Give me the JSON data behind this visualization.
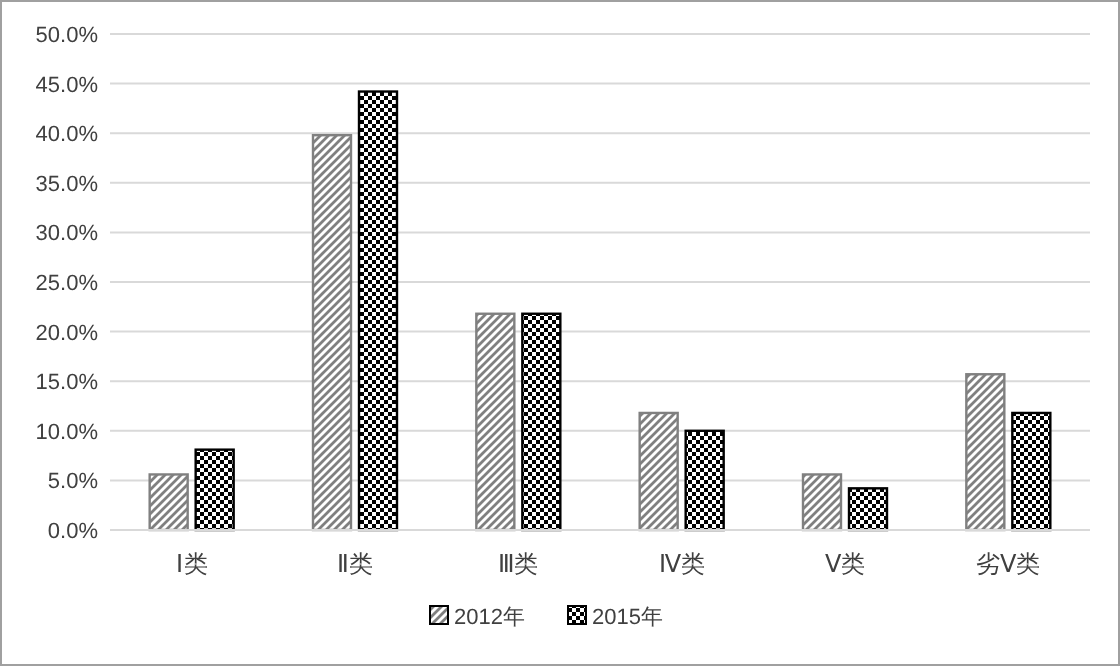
{
  "chart_data": {
    "type": "bar",
    "categories": [
      "Ⅰ类",
      "Ⅱ类",
      "Ⅲ类",
      "Ⅳ类",
      "Ⅴ类",
      "劣Ⅴ类"
    ],
    "series": [
      {
        "name": "2012年",
        "color": "#808080",
        "values": [
          5.6,
          39.8,
          21.8,
          11.8,
          5.6,
          15.7
        ]
      },
      {
        "name": "2015年",
        "color": "#000000",
        "values": [
          8.1,
          44.2,
          21.8,
          10.0,
          4.2,
          11.8
        ]
      }
    ],
    "ylim": [
      0,
      50
    ],
    "yticks": [
      {
        "value": 0,
        "label": "0.0%"
      },
      {
        "value": 5,
        "label": "5.0%"
      },
      {
        "value": 10,
        "label": "10.0%"
      },
      {
        "value": 15,
        "label": "15.0%"
      },
      {
        "value": 20,
        "label": "20.0%"
      },
      {
        "value": 25,
        "label": "25.0%"
      },
      {
        "value": 30,
        "label": "30.0%"
      },
      {
        "value": 35,
        "label": "35.0%"
      },
      {
        "value": 40,
        "label": "40.0%"
      },
      {
        "value": 45,
        "label": "45.0%"
      },
      {
        "value": 50,
        "label": "50.0%"
      }
    ],
    "grid": "y",
    "legend": "bottom"
  }
}
